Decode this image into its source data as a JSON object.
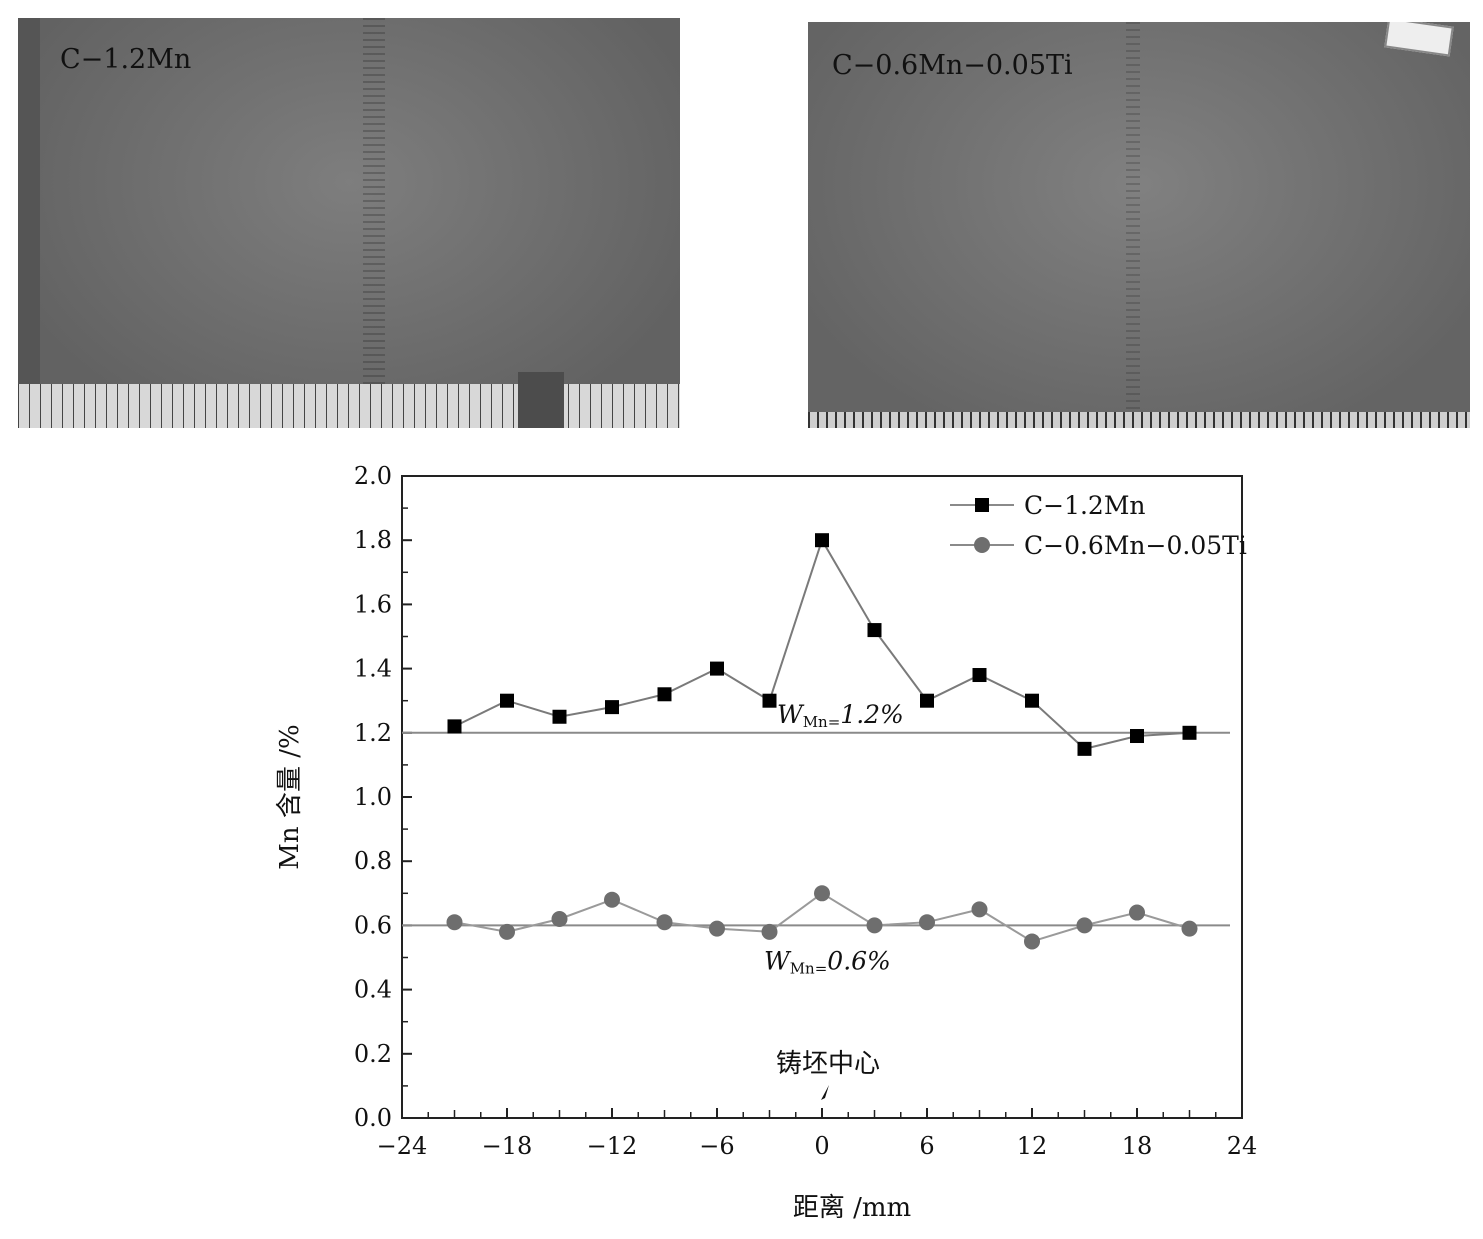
{
  "photos": [
    {
      "label": "C−1.2Mn"
    },
    {
      "label": "C−0.6Mn−0.05Ti"
    }
  ],
  "chart_data": {
    "type": "line",
    "xlabel": "距离 /mm",
    "ylabel": "Mn 含量 /%",
    "xlim": [
      -24,
      24
    ],
    "ylim": [
      0.0,
      2.0
    ],
    "xticks": [
      -24,
      -18,
      -12,
      -6,
      0,
      6,
      12,
      18,
      24
    ],
    "xtick_labels": [
      "−24",
      "−18",
      "−12",
      "−6",
      "0",
      "6",
      "12",
      "18",
      "24"
    ],
    "yticks": [
      0.0,
      0.2,
      0.4,
      0.6,
      0.8,
      1.0,
      1.2,
      1.4,
      1.6,
      1.8,
      2.0
    ],
    "ytick_labels": [
      "0.0",
      "0.2",
      "0.4",
      "0.6",
      "0.8",
      "1.0",
      "1.2",
      "1.4",
      "1.6",
      "1.8",
      "2.0"
    ],
    "grid": false,
    "legend_position": "top-right",
    "x": [
      -21,
      -18,
      -15,
      -12,
      -9,
      -6,
      -3,
      0,
      3,
      6,
      9,
      12,
      15,
      18,
      21
    ],
    "series": [
      {
        "name": "C−1.2Mn",
        "marker": "square",
        "color": "#000000",
        "values": [
          1.22,
          1.3,
          1.25,
          1.28,
          1.32,
          1.4,
          1.3,
          1.8,
          1.52,
          1.3,
          1.38,
          1.3,
          1.15,
          1.19,
          1.2
        ]
      },
      {
        "name": "C−0.6Mn−0.05Ti",
        "marker": "circle",
        "color": "#6e6e6e",
        "values": [
          0.61,
          0.58,
          0.62,
          0.68,
          0.61,
          0.59,
          0.58,
          0.7,
          0.6,
          0.61,
          0.65,
          0.55,
          0.6,
          0.64,
          0.59
        ]
      }
    ],
    "reference_lines": [
      {
        "y": 1.2,
        "label_main": "W",
        "label_sub": "Mn=",
        "label_value": "1.2%"
      },
      {
        "y": 0.6,
        "label_main": "W",
        "label_sub": "Mn=",
        "label_value": "0.6%"
      }
    ],
    "annotation": {
      "text": "铸坯中心",
      "x": 0
    }
  }
}
